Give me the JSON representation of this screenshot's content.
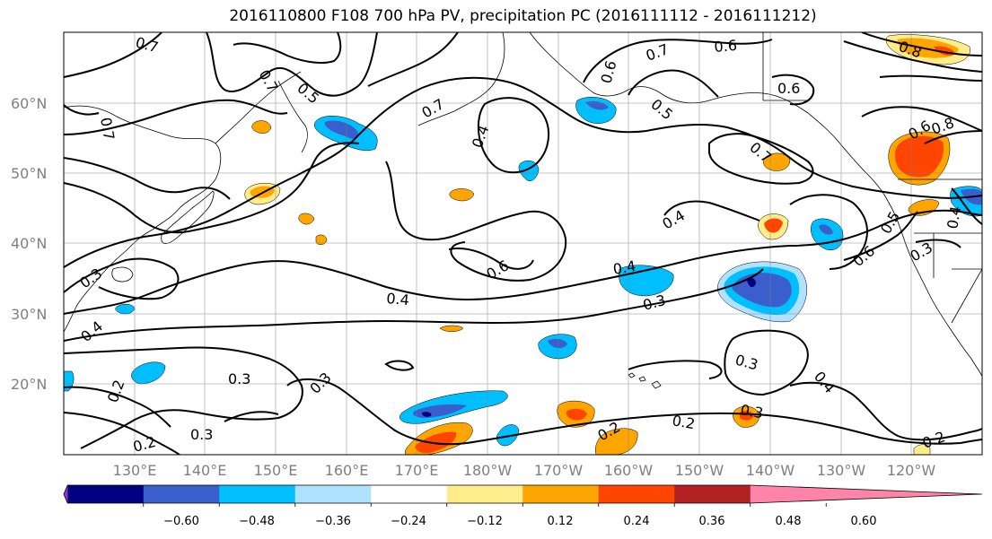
{
  "title": "2016110800 F108 700 hPa PV, precipitation PC (2016111112 - 2016111212)",
  "lat_labels": [
    "60°N",
    "50°N",
    "40°N",
    "30°N",
    "20°N"
  ],
  "lon_labels": [
    "130°E",
    "140°E",
    "150°E",
    "160°E",
    "170°E",
    "180°W",
    "170°W",
    "160°W",
    "150°W",
    "140°W",
    "130°W",
    "120°W"
  ],
  "colorbar": {
    "colors": [
      "#9932cc",
      "#000080",
      "#3a5fcd",
      "#00bfff",
      "#b0e2ff",
      "#ffffff",
      "#ffec8b",
      "#ffa500",
      "#ff4500",
      "#b22222",
      "#ff83aa"
    ],
    "tick_labels": [
      "−0.60",
      "−0.48",
      "−0.36",
      "−0.24",
      "−0.12",
      "0.12",
      "0.24",
      "0.36",
      "0.48",
      "0.60"
    ]
  },
  "contour_labels": [
    "0.7",
    "0.5",
    "0.7",
    "0.7",
    "0.6",
    "0.8",
    "0.6",
    "0.7",
    "0.4",
    "0.7",
    "0.5",
    "0.7",
    "0.6",
    "0.4",
    "0.5",
    "0.6",
    "0.4",
    "0.6",
    "0.3",
    "0.3",
    "0.4",
    "0.3",
    "0.2",
    "0.4",
    "0.3",
    "0.3",
    "0.3",
    "0.2",
    "0.4",
    "0.2",
    "0.2",
    "0.2",
    "0.4",
    "0.6",
    "0.3",
    "0.3",
    "0.8"
  ]
}
